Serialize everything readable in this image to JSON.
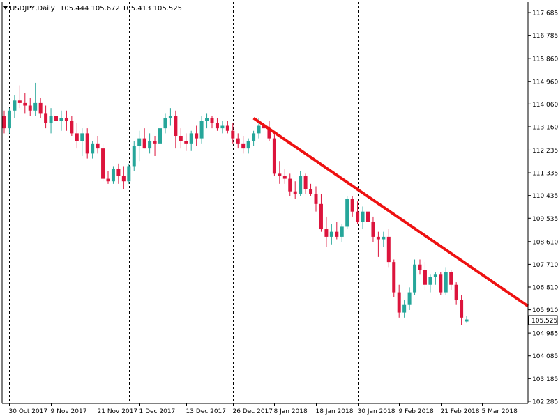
{
  "header": {
    "symbol_label": "USDJPY,Daily",
    "ohlc": "105.444 105.672 105.413 105.525"
  },
  "colors": {
    "bull": "#26a69a",
    "bear": "#dc143c",
    "trendline": "#ee1111",
    "grid_vertical": "#000000",
    "price_line": "#8c9a9a",
    "price_tag_bg": "#ffffff"
  },
  "current_price": {
    "value": 105.525,
    "label": "105.525"
  },
  "chart_data": {
    "type": "candlestick",
    "title": "",
    "ylim": [
      102.2,
      118.1
    ],
    "y_ticks": [
      "117.685",
      "116.785",
      "115.860",
      "114.960",
      "114.060",
      "113.160",
      "112.235",
      "111.335",
      "110.435",
      "109.535",
      "108.610",
      "107.710",
      "106.810",
      "105.910",
      "104.985",
      "104.085",
      "103.185",
      "102.285"
    ],
    "x_ticks": [
      {
        "index": 1,
        "label": "30 Oct 2017"
      },
      {
        "index": 9,
        "label": "9 Nov 2017"
      },
      {
        "index": 18,
        "label": "21 Nov 2017"
      },
      {
        "index": 26,
        "label": "1 Dec 2017"
      },
      {
        "index": 35,
        "label": "13 Dec 2017"
      },
      {
        "index": 44,
        "label": "26 Dec 2017"
      },
      {
        "index": 52,
        "label": "8 Jan 2018"
      },
      {
        "index": 60,
        "label": "18 Jan 2018"
      },
      {
        "index": 68,
        "label": "30 Jan 2018"
      },
      {
        "index": 76,
        "label": "9 Feb 2018"
      },
      {
        "index": 84,
        "label": "21 Feb 2018"
      },
      {
        "index": 92,
        "label": "5 Mar 2018"
      }
    ],
    "separators": [
      1,
      24,
      44,
      68,
      88
    ],
    "trendline": {
      "start": {
        "index": 48,
        "price": 113.5
      },
      "end": {
        "index": 98,
        "price": 106.45
      }
    },
    "candles": [
      [
        113.6,
        113.8,
        112.9,
        113.1
      ],
      [
        113.1,
        113.9,
        112.9,
        113.8
      ],
      [
        113.8,
        114.4,
        113.5,
        114.2
      ],
      [
        114.2,
        114.8,
        113.9,
        114.1
      ],
      [
        114.1,
        114.5,
        113.7,
        114.0
      ],
      [
        114.0,
        114.3,
        113.6,
        113.8
      ],
      [
        113.8,
        114.9,
        113.6,
        114.1
      ],
      [
        114.1,
        114.3,
        113.5,
        113.7
      ],
      [
        113.7,
        114.0,
        113.1,
        113.3
      ],
      [
        113.3,
        113.9,
        112.9,
        113.6
      ],
      [
        113.6,
        114.1,
        113.2,
        113.4
      ],
      [
        113.4,
        113.8,
        113.0,
        113.5
      ],
      [
        113.5,
        113.8,
        113.0,
        113.4
      ],
      [
        113.4,
        113.6,
        112.8,
        112.9
      ],
      [
        112.9,
        113.3,
        112.3,
        112.6
      ],
      [
        112.6,
        113.1,
        112.0,
        112.9
      ],
      [
        112.9,
        113.1,
        111.9,
        112.1
      ],
      [
        112.1,
        112.6,
        111.9,
        112.5
      ],
      [
        112.5,
        112.8,
        112.1,
        112.3
      ],
      [
        112.3,
        112.5,
        111.0,
        111.1
      ],
      [
        111.1,
        111.4,
        110.9,
        111.0
      ],
      [
        111.0,
        111.6,
        110.9,
        111.5
      ],
      [
        111.5,
        111.7,
        110.9,
        111.2
      ],
      [
        111.2,
        111.6,
        110.7,
        111.0
      ],
      [
        111.0,
        111.7,
        110.9,
        111.6
      ],
      [
        111.6,
        112.6,
        111.4,
        112.4
      ],
      [
        112.4,
        113.0,
        111.8,
        112.7
      ],
      [
        112.7,
        113.1,
        112.3,
        112.3
      ],
      [
        112.3,
        112.9,
        112.1,
        112.6
      ],
      [
        112.6,
        112.8,
        112.0,
        112.5
      ],
      [
        112.5,
        113.2,
        112.3,
        113.1
      ],
      [
        113.1,
        113.7,
        112.9,
        113.5
      ],
      [
        113.5,
        113.9,
        113.2,
        113.6
      ],
      [
        113.6,
        113.8,
        112.3,
        112.8
      ],
      [
        112.8,
        113.1,
        112.3,
        112.6
      ],
      [
        112.6,
        112.9,
        112.2,
        112.5
      ],
      [
        112.5,
        113.0,
        112.2,
        112.9
      ],
      [
        112.9,
        113.2,
        112.4,
        112.7
      ],
      [
        112.7,
        113.6,
        112.5,
        113.4
      ],
      [
        113.4,
        113.7,
        113.1,
        113.5
      ],
      [
        113.5,
        113.6,
        113.1,
        113.3
      ],
      [
        113.3,
        113.5,
        113.0,
        113.1
      ],
      [
        113.1,
        113.4,
        112.9,
        113.2
      ],
      [
        113.2,
        113.4,
        112.9,
        113.0
      ],
      [
        113.0,
        113.3,
        112.5,
        112.7
      ],
      [
        112.7,
        112.9,
        112.3,
        112.5
      ],
      [
        112.5,
        112.8,
        112.1,
        112.3
      ],
      [
        112.3,
        112.7,
        112.1,
        112.6
      ],
      [
        112.6,
        113.0,
        112.4,
        112.9
      ],
      [
        112.9,
        113.5,
        112.7,
        113.2
      ],
      [
        113.2,
        113.5,
        112.9,
        113.1
      ],
      [
        113.1,
        113.4,
        112.6,
        112.7
      ],
      [
        112.7,
        112.9,
        111.2,
        111.3
      ],
      [
        111.3,
        111.8,
        110.9,
        111.2
      ],
      [
        111.2,
        111.5,
        110.9,
        111.1
      ],
      [
        111.1,
        111.3,
        110.4,
        110.6
      ],
      [
        110.6,
        111.0,
        110.3,
        110.5
      ],
      [
        110.5,
        111.4,
        110.4,
        111.2
      ],
      [
        111.2,
        111.3,
        110.5,
        110.7
      ],
      [
        110.7,
        110.9,
        110.4,
        110.5
      ],
      [
        110.5,
        110.8,
        109.8,
        110.1
      ],
      [
        110.1,
        110.5,
        109.0,
        109.1
      ],
      [
        109.1,
        109.6,
        108.4,
        108.8
      ],
      [
        108.8,
        109.3,
        108.5,
        109.0
      ],
      [
        109.0,
        109.4,
        108.7,
        108.8
      ],
      [
        108.8,
        109.3,
        108.6,
        109.2
      ],
      [
        109.2,
        110.4,
        109.1,
        110.3
      ],
      [
        110.3,
        110.4,
        109.6,
        109.8
      ],
      [
        109.8,
        110.2,
        109.3,
        109.4
      ],
      [
        109.4,
        110.0,
        109.1,
        109.8
      ],
      [
        109.8,
        110.1,
        109.2,
        109.4
      ],
      [
        109.4,
        109.6,
        108.6,
        108.8
      ],
      [
        108.8,
        109.0,
        108.0,
        108.7
      ],
      [
        108.7,
        109.0,
        108.4,
        108.8
      ],
      [
        108.8,
        109.1,
        107.6,
        107.8
      ],
      [
        107.8,
        107.9,
        106.4,
        106.6
      ],
      [
        106.6,
        106.9,
        105.6,
        105.8
      ],
      [
        105.8,
        106.3,
        105.6,
        106.1
      ],
      [
        106.1,
        106.8,
        105.9,
        106.6
      ],
      [
        106.6,
        107.9,
        106.5,
        107.7
      ],
      [
        107.7,
        107.9,
        107.3,
        107.5
      ],
      [
        107.5,
        107.8,
        106.7,
        106.9
      ],
      [
        106.9,
        107.3,
        106.6,
        107.2
      ],
      [
        107.2,
        107.4,
        106.9,
        107.3
      ],
      [
        107.3,
        107.4,
        106.5,
        106.6
      ],
      [
        106.6,
        107.6,
        106.5,
        107.4
      ],
      [
        107.4,
        107.5,
        106.7,
        106.9
      ],
      [
        106.9,
        107.0,
        106.1,
        106.3
      ],
      [
        106.3,
        106.5,
        105.3,
        105.6
      ],
      [
        105.444,
        105.672,
        105.413,
        105.525
      ]
    ]
  }
}
